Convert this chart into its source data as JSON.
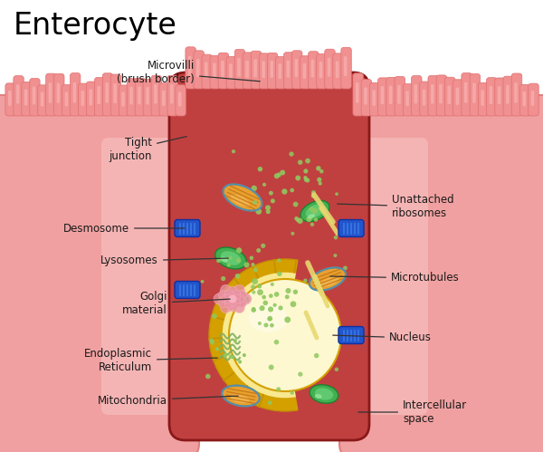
{
  "title": "Enterocyte",
  "bg_color": "#ffffff",
  "cell_body_color": "#c04040",
  "outer_tissue_color": "#f0a0a0",
  "outer_tissue_light": "#fac8c8",
  "outer_tissue_edge": "#e08080",
  "microvilli_color": "#f09090",
  "microvilli_shade": "#e07070",
  "microvilli_light": "#fcc0c0",
  "nucleus_gold": "#d4a000",
  "nucleus_gold2": "#c49000",
  "nucleus_sphere": "#f8e890",
  "nucleus_core": "#fdf8d0",
  "mitochondria_outer": "#e8a030",
  "mitochondria_light": "#f8c060",
  "mitochondria_inner": "#c07010",
  "lysosome_outer": "#40b050",
  "lysosome_mid": "#60c870",
  "lysosome_light": "#a0e8a0",
  "ribosome_color": "#90c860",
  "golgi_pink": "#e890a0",
  "golgi_light": "#f8b0c0",
  "desmosome_color": "#2255cc",
  "desmosome_light": "#4488ee",
  "microtubule_color": "#e8d870",
  "er_dots": "#90c860",
  "labels": {
    "microvilli": "Microvilli\n(brush border)",
    "tight_junction": "Tight\njunction",
    "desmosome": "Desmosome",
    "lysosomes": "Lysosomes",
    "golgi": "Golgi\nmaterial",
    "er": "Endoplasmic\nReticulum",
    "mitochondria": "Mitochondria",
    "nucleus": "Nucleus",
    "microtubules": "Microtubules",
    "unattached_ribosomes": "Unattached\nribosomes",
    "intercellular_space": "Intercellular\nspace"
  }
}
